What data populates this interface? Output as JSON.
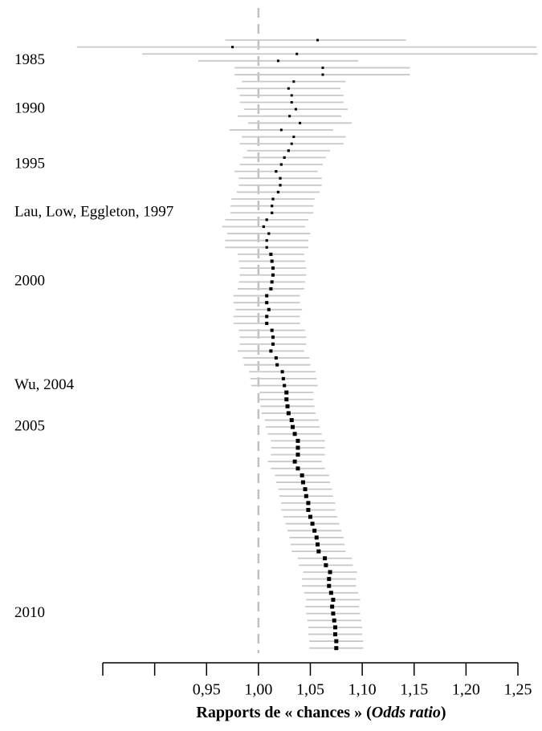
{
  "chart_data": {
    "type": "forest",
    "xlabel": [
      "Rapports de « chances » (",
      "Odds ratio",
      ")"
    ],
    "xlim": [
      0.85,
      1.25
    ],
    "xticks": [
      {
        "value": 0.85,
        "label": null
      },
      {
        "value": 0.9,
        "label": null
      },
      {
        "value": 0.95,
        "label": "0,95"
      },
      {
        "value": 1.0,
        "label": "1,00"
      },
      {
        "value": 1.05,
        "label": "1,05"
      },
      {
        "value": 1.1,
        "label": "1,10"
      },
      {
        "value": 1.15,
        "label": "1,15"
      },
      {
        "value": 1.2,
        "label": "1,20"
      },
      {
        "value": 1.25,
        "label": "1,25"
      }
    ],
    "reference_line": 1.0,
    "ci_color": "#c8c8c8",
    "point_color": "#000000",
    "reference_color": "#c0c0c0",
    "categories": [
      null,
      null,
      null,
      "1985",
      null,
      null,
      null,
      null,
      null,
      null,
      "1990",
      null,
      null,
      null,
      null,
      null,
      null,
      null,
      "1995",
      null,
      null,
      null,
      null,
      null,
      null,
      "Lau, Low, Eggleton, 1997",
      null,
      null,
      null,
      null,
      null,
      null,
      null,
      null,
      null,
      "2000",
      null,
      null,
      null,
      null,
      null,
      null,
      null,
      null,
      null,
      null,
      null,
      null,
      null,
      null,
      "Wu, 2004",
      null,
      null,
      null,
      null,
      null,
      "2005",
      null,
      null,
      null,
      null,
      null,
      null,
      null,
      null,
      null,
      null,
      null,
      null,
      null,
      null,
      null,
      null,
      null,
      null,
      null,
      null,
      null,
      null,
      null,
      null,
      null,
      null,
      "2010",
      null,
      null,
      null,
      null,
      null
    ],
    "estimate": [
      1.057,
      0.975,
      1.037,
      1.019,
      1.062,
      1.062,
      1.034,
      1.029,
      1.032,
      1.032,
      1.036,
      1.03,
      1.04,
      1.022,
      1.034,
      1.032,
      1.029,
      1.025,
      1.022,
      1.017,
      1.021,
      1.021,
      1.019,
      1.014,
      1.013,
      1.013,
      1.008,
      1.005,
      1.01,
      1.008,
      1.008,
      1.012,
      1.013,
      1.014,
      1.014,
      1.013,
      1.012,
      1.008,
      1.008,
      1.01,
      1.008,
      1.008,
      1.013,
      1.014,
      1.014,
      1.012,
      1.017,
      1.018,
      1.023,
      1.024,
      1.025,
      1.027,
      1.027,
      1.028,
      1.029,
      1.032,
      1.033,
      1.035,
      1.038,
      1.038,
      1.038,
      1.035,
      1.038,
      1.042,
      1.043,
      1.045,
      1.046,
      1.048,
      1.048,
      1.05,
      1.052,
      1.054,
      1.056,
      1.057,
      1.058,
      1.064,
      1.065,
      1.069,
      1.068,
      1.068,
      1.07,
      1.072,
      1.071,
      1.072,
      1.073,
      1.074,
      1.074,
      1.075,
      1.075
    ],
    "lower": [
      0.968,
      0.825,
      0.888,
      0.942,
      0.977,
      0.977,
      0.984,
      0.979,
      0.982,
      0.982,
      0.986,
      0.98,
      0.99,
      0.972,
      0.984,
      0.982,
      0.989,
      0.985,
      0.982,
      0.977,
      0.981,
      0.981,
      0.979,
      0.974,
      0.973,
      0.973,
      0.968,
      0.965,
      0.97,
      0.968,
      0.968,
      0.98,
      0.981,
      0.982,
      0.982,
      0.981,
      0.98,
      0.976,
      0.976,
      0.978,
      0.976,
      0.976,
      0.981,
      0.982,
      0.982,
      0.98,
      0.985,
      0.986,
      0.991,
      0.992,
      0.993,
      1.001,
      1.001,
      1.002,
      1.003,
      1.006,
      1.007,
      1.009,
      1.012,
      1.012,
      1.012,
      1.009,
      1.012,
      1.016,
      1.017,
      1.019,
      1.02,
      1.022,
      1.022,
      1.024,
      1.026,
      1.028,
      1.03,
      1.031,
      1.032,
      1.038,
      1.039,
      1.043,
      1.042,
      1.042,
      1.044,
      1.046,
      1.045,
      1.046,
      1.047,
      1.048,
      1.048,
      1.049,
      1.049
    ],
    "upper": [
      1.142,
      1.268,
      1.269,
      1.096,
      1.146,
      1.146,
      1.084,
      1.079,
      1.082,
      1.082,
      1.086,
      1.08,
      1.09,
      1.072,
      1.084,
      1.082,
      1.069,
      1.065,
      1.062,
      1.057,
      1.061,
      1.061,
      1.059,
      1.054,
      1.053,
      1.053,
      1.048,
      1.045,
      1.05,
      1.048,
      1.048,
      1.044,
      1.045,
      1.046,
      1.046,
      1.045,
      1.044,
      1.04,
      1.04,
      1.042,
      1.04,
      1.04,
      1.045,
      1.046,
      1.046,
      1.044,
      1.049,
      1.05,
      1.055,
      1.056,
      1.057,
      1.053,
      1.053,
      1.054,
      1.055,
      1.058,
      1.059,
      1.061,
      1.064,
      1.064,
      1.064,
      1.061,
      1.064,
      1.068,
      1.069,
      1.071,
      1.072,
      1.074,
      1.074,
      1.076,
      1.078,
      1.08,
      1.082,
      1.083,
      1.084,
      1.09,
      1.091,
      1.095,
      1.094,
      1.094,
      1.096,
      1.098,
      1.097,
      1.098,
      1.099,
      1.1,
      1.1,
      1.101,
      1.101
    ]
  }
}
